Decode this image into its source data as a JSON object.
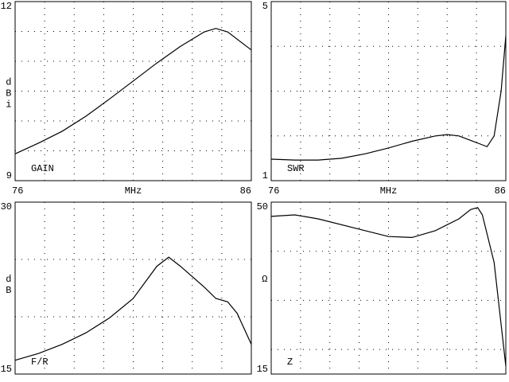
{
  "chart_data": [
    {
      "type": "line",
      "label": "GAIN",
      "ylabel": "dBi",
      "xlabel": "MHz",
      "xlim": [
        76,
        86
      ],
      "xticks": [
        76,
        86
      ],
      "ylim": [
        9,
        12
      ],
      "yticks": [
        9,
        12
      ],
      "xgrid": [
        77.25,
        78.5,
        79.75,
        81,
        82.25,
        83.5,
        84.75
      ],
      "ygrid": [
        9.5,
        10,
        10.5,
        11,
        11.5
      ],
      "color": "#000000",
      "x": [
        76,
        77,
        78,
        79,
        80,
        81,
        82,
        83,
        84,
        84.5,
        85,
        86
      ],
      "values": [
        9.45,
        9.63,
        9.83,
        10.08,
        10.37,
        10.67,
        10.97,
        11.25,
        11.49,
        11.55,
        11.49,
        11.19
      ]
    },
    {
      "type": "line",
      "label": "SWR",
      "xlabel": "MHz",
      "xlim": [
        76,
        86
      ],
      "xticks": [
        76,
        86
      ],
      "ylim": [
        1,
        5
      ],
      "yticks": [
        1,
        5
      ],
      "xgrid": [
        77.25,
        78.5,
        79.75,
        81,
        82.25,
        83.5,
        84.75
      ],
      "ygrid": [
        2,
        3,
        4
      ],
      "color": "#000000",
      "x": [
        76,
        77,
        78,
        79,
        80,
        81,
        82,
        83,
        83.5,
        84,
        84.5,
        85,
        85.2,
        85.5,
        85.8,
        86
      ],
      "values": [
        1.48,
        1.46,
        1.46,
        1.5,
        1.6,
        1.73,
        1.88,
        2.0,
        2.03,
        2.0,
        1.9,
        1.8,
        1.76,
        2.0,
        3.0,
        4.24
      ]
    },
    {
      "type": "line",
      "label": "F/R",
      "ylabel": "dB",
      "xlim": [
        76,
        86
      ],
      "ylim": [
        15,
        30
      ],
      "yticks": [
        15,
        30
      ],
      "xgrid": [
        77.25,
        78.5,
        79.75,
        81,
        82.25,
        83.5,
        84.75
      ],
      "ygrid": [
        20,
        25
      ],
      "color": "#000000",
      "x": [
        76,
        77,
        78,
        79,
        80,
        81,
        82,
        82.5,
        83,
        84,
        84.5,
        85,
        85.4,
        86
      ],
      "values": [
        16.2,
        16.8,
        17.6,
        18.6,
        19.9,
        21.6,
        24.4,
        25.2,
        24.4,
        22.6,
        21.6,
        21.3,
        20.3,
        17.6
      ]
    },
    {
      "type": "line",
      "label": "Z",
      "ylabel": "Ω",
      "xlim": [
        76,
        86
      ],
      "ylim": [
        15,
        50
      ],
      "yticks": [
        15,
        50
      ],
      "xgrid": [
        77.25,
        78.5,
        79.75,
        81,
        82.25,
        83.5,
        84.75
      ],
      "ygrid": [
        20,
        30,
        40
      ],
      "color": "#000000",
      "x": [
        76,
        77,
        78,
        80,
        81,
        82,
        83,
        84,
        84.5,
        84.8,
        85,
        85.5,
        86
      ],
      "values": [
        47.1,
        47.4,
        46.6,
        44.2,
        43.0,
        42.8,
        44.2,
        46.6,
        48.5,
        48.9,
        47.4,
        37.7,
        16.6
      ]
    }
  ]
}
